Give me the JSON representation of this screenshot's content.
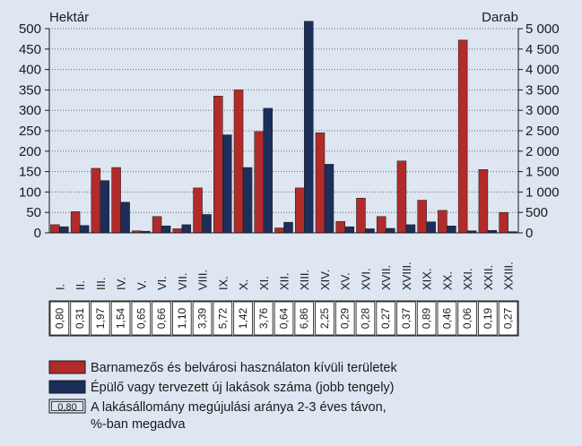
{
  "chart_data": {
    "type": "bar",
    "left_axis_label": "Hektár",
    "right_axis_label": "Darab",
    "left_ylim": [
      0,
      500
    ],
    "right_ylim": [
      0,
      5000
    ],
    "left_ticks": [
      "0",
      "50",
      "100",
      "150",
      "200",
      "250",
      "300",
      "350",
      "400",
      "450",
      "500"
    ],
    "right_ticks": [
      "0",
      "500",
      "1 000",
      "1 500",
      "2 000",
      "2 500",
      "3 000",
      "3 500",
      "4 000",
      "4 500",
      "5 000"
    ],
    "grid": "dotted-horizontal",
    "categories": [
      "I.",
      "II.",
      "III.",
      "IV.",
      "V.",
      "VI.",
      "VII.",
      "VIII.",
      "IX.",
      "X.",
      "XI.",
      "XII.",
      "XIII.",
      "XIV.",
      "XV.",
      "XVI.",
      "XVII.",
      "XVIII.",
      "XIX.",
      "XX.",
      "XXI.",
      "XXII.",
      "XXIII."
    ],
    "series": [
      {
        "name": "Barnamezős és belvárosi használaton kívüli területek",
        "axis": "left",
        "color": "#b22b2b",
        "values": [
          20,
          52,
          158,
          160,
          5,
          40,
          10,
          110,
          335,
          350,
          248,
          12,
          110,
          245,
          28,
          85,
          40,
          176,
          80,
          55,
          472,
          155,
          50
        ]
      },
      {
        "name": "Épülő vagy tervezett új lakások száma (jobb tengely)",
        "axis": "right",
        "color": "#1c2e5a",
        "values": [
          150,
          180,
          1280,
          750,
          40,
          170,
          200,
          450,
          2400,
          1600,
          3050,
          260,
          5180,
          1680,
          150,
          100,
          110,
          200,
          270,
          170,
          50,
          60,
          30
        ]
      }
    ],
    "renewal_rates": [
      "0,80",
      "0,31",
      "1,97",
      "1,54",
      "0,65",
      "0,66",
      "1,10",
      "3,39",
      "5,72",
      "1,42",
      "3,76",
      "0,64",
      "6,86",
      "2,25",
      "0,29",
      "0,28",
      "0,27",
      "0,37",
      "0,89",
      "0,46",
      "0,06",
      "0,19",
      "0,27"
    ],
    "legend": {
      "placement": "bottom",
      "box_sample": "0,80",
      "box_text_line1": "A lakásállomány megújulási aránya 2-3 éves távon,",
      "box_text_line2": "%-ban megadva"
    }
  }
}
